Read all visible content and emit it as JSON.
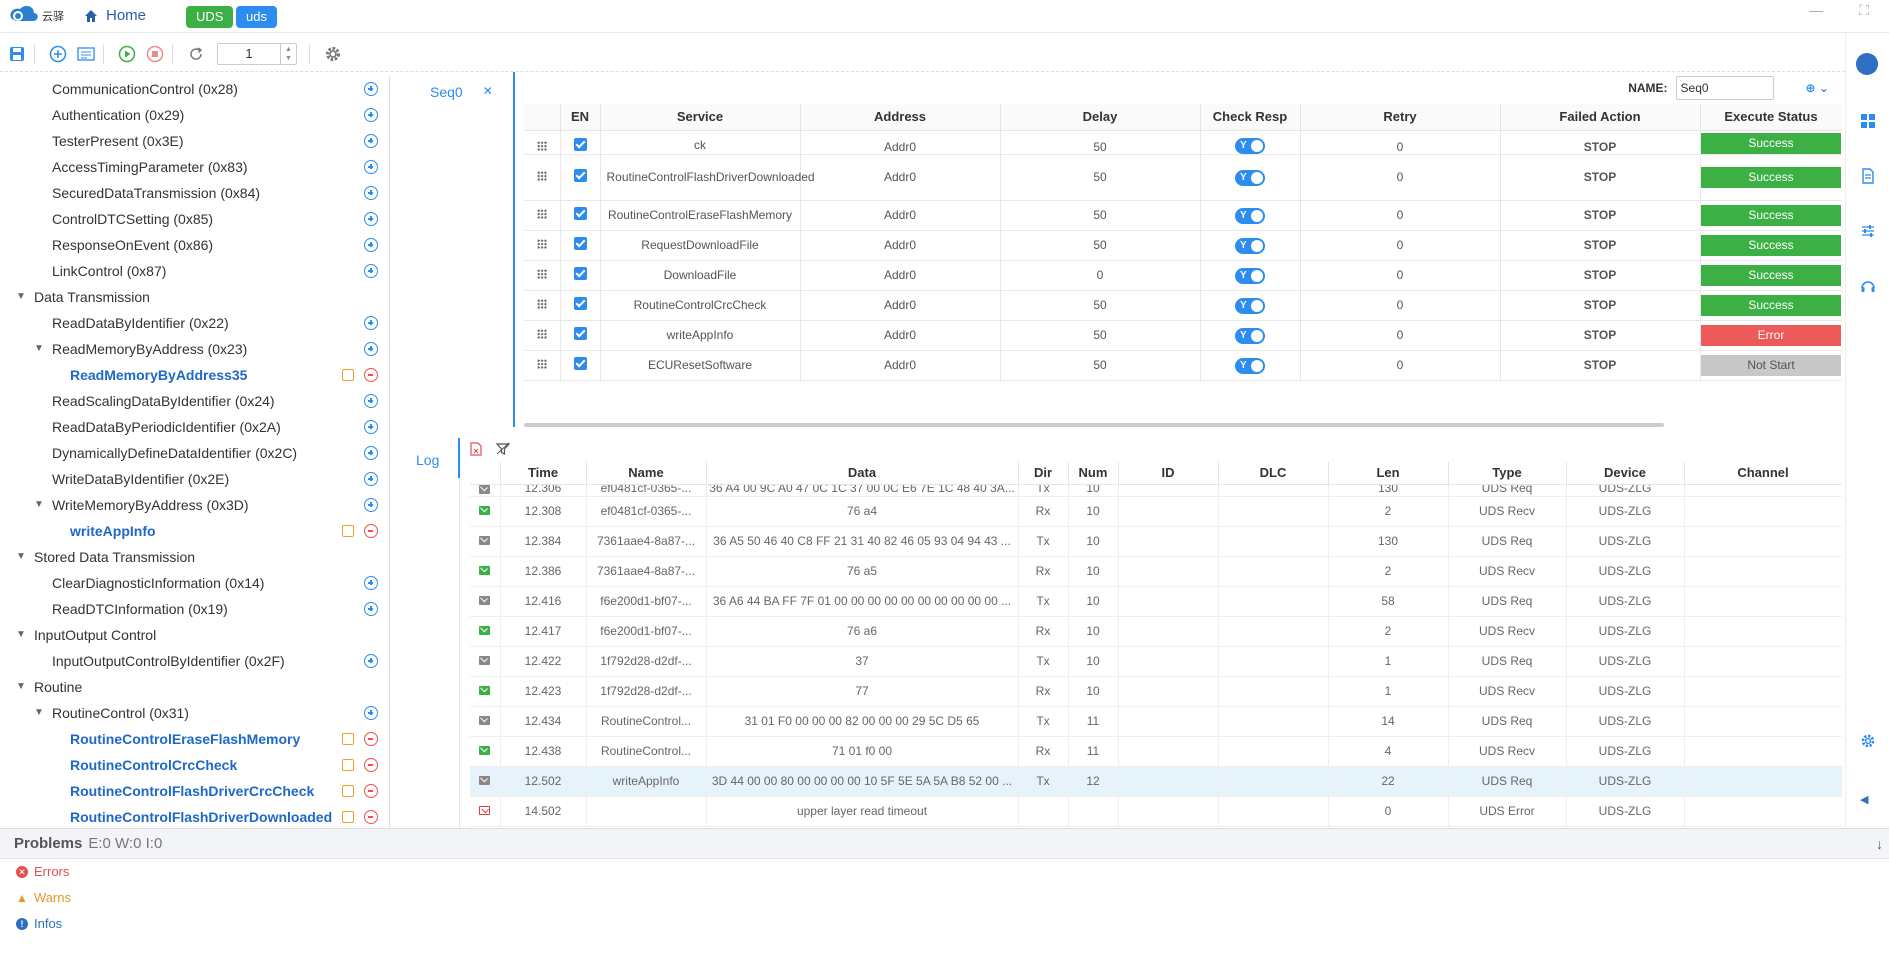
{
  "header": {
    "logo_text": "云驿",
    "home_label": "Home",
    "tabs": [
      "UDS",
      "uds"
    ],
    "colors": {
      "accent": "#2d8cf0",
      "success": "#3cb045",
      "error": "#ed5a5a"
    }
  },
  "toolbar": {
    "step_value": "1"
  },
  "tree": [
    {
      "label": "CommunicationControl (0x28)",
      "level": 1,
      "type": "service"
    },
    {
      "label": "Authentication (0x29)",
      "level": 1,
      "type": "service"
    },
    {
      "label": "TesterPresent (0x3E)",
      "level": 1,
      "type": "service"
    },
    {
      "label": "AccessTimingParameter (0x83)",
      "level": 1,
      "type": "service"
    },
    {
      "label": "SecuredDataTransmission (0x84)",
      "level": 1,
      "type": "service"
    },
    {
      "label": "ControlDTCSetting (0x85)",
      "level": 1,
      "type": "service"
    },
    {
      "label": "ResponseOnEvent (0x86)",
      "level": 1,
      "type": "service"
    },
    {
      "label": "LinkControl (0x87)",
      "level": 1,
      "type": "service"
    },
    {
      "label": "Data Transmission",
      "level": 0,
      "type": "group"
    },
    {
      "label": "ReadDataByIdentifier (0x22)",
      "level": 1,
      "type": "service"
    },
    {
      "label": "ReadMemoryByAddress (0x23)",
      "level": 1,
      "type": "service",
      "expanded": true
    },
    {
      "label": "ReadMemoryByAddress35",
      "level": 2,
      "type": "leaf"
    },
    {
      "label": "ReadScalingDataByIdentifier (0x24)",
      "level": 1,
      "type": "service"
    },
    {
      "label": "ReadDataByPeriodicIdentifier (0x2A)",
      "level": 1,
      "type": "service"
    },
    {
      "label": "DynamicallyDefineDataIdentifier (0x2C)",
      "level": 1,
      "type": "service"
    },
    {
      "label": "WriteDataByIdentifier (0x2E)",
      "level": 1,
      "type": "service"
    },
    {
      "label": "WriteMemoryByAddress (0x3D)",
      "level": 1,
      "type": "service",
      "expanded": true
    },
    {
      "label": "writeAppInfo",
      "level": 2,
      "type": "leaf"
    },
    {
      "label": "Stored Data Transmission",
      "level": 0,
      "type": "group"
    },
    {
      "label": "ClearDiagnosticInformation (0x14)",
      "level": 1,
      "type": "service"
    },
    {
      "label": "ReadDTCInformation (0x19)",
      "level": 1,
      "type": "service"
    },
    {
      "label": "InputOutput Control",
      "level": 0,
      "type": "group"
    },
    {
      "label": "InputOutputControlByIdentifier (0x2F)",
      "level": 1,
      "type": "service"
    },
    {
      "label": "Routine",
      "level": 0,
      "type": "group"
    },
    {
      "label": "RoutineControl (0x31)",
      "level": 1,
      "type": "service",
      "expanded": true
    },
    {
      "label": "RoutineControlEraseFlashMemory",
      "level": 2,
      "type": "leaf"
    },
    {
      "label": "RoutineControlCrcCheck",
      "level": 2,
      "type": "leaf"
    },
    {
      "label": "RoutineControlFlashDriverCrcCheck",
      "level": 2,
      "type": "leaf"
    },
    {
      "label": "RoutineControlFlashDriverDownloaded",
      "level": 2,
      "type": "leaf"
    }
  ],
  "seq": {
    "tab_label": "Seq0",
    "name_label": "NAME:",
    "name_value": "Seq0",
    "columns": [
      "EN",
      "Service",
      "Address",
      "Delay",
      "Check Resp",
      "Retry",
      "Failed Action",
      "Execute Status"
    ],
    "rows": [
      {
        "service": "ck",
        "address": "Addr0",
        "delay": "50",
        "check": "Y",
        "retry": "0",
        "failed": "STOP",
        "status": "Success",
        "kind": "success",
        "partial": true
      },
      {
        "service": "RoutineControlFlashDriverDownloaded",
        "address": "Addr0",
        "delay": "50",
        "check": "Y",
        "retry": "0",
        "failed": "STOP",
        "status": "Success",
        "kind": "success",
        "tall": true
      },
      {
        "service": "RoutineControlEraseFlashMemory",
        "address": "Addr0",
        "delay": "50",
        "check": "Y",
        "retry": "0",
        "failed": "STOP",
        "status": "Success",
        "kind": "success"
      },
      {
        "service": "RequestDownloadFile",
        "address": "Addr0",
        "delay": "50",
        "check": "Y",
        "retry": "0",
        "failed": "STOP",
        "status": "Success",
        "kind": "success"
      },
      {
        "service": "DownloadFile",
        "address": "Addr0",
        "delay": "0",
        "check": "Y",
        "retry": "0",
        "failed": "STOP",
        "status": "Success",
        "kind": "success"
      },
      {
        "service": "RoutineControlCrcCheck",
        "address": "Addr0",
        "delay": "50",
        "check": "Y",
        "retry": "0",
        "failed": "STOP",
        "status": "Success",
        "kind": "success"
      },
      {
        "service": "writeAppInfo",
        "address": "Addr0",
        "delay": "50",
        "check": "Y",
        "retry": "0",
        "failed": "STOP",
        "status": "Error",
        "kind": "error"
      },
      {
        "service": "ECUResetSoftware",
        "address": "Addr0",
        "delay": "50",
        "check": "Y",
        "retry": "0",
        "failed": "STOP",
        "status": "Not Start",
        "kind": "not"
      }
    ]
  },
  "log": {
    "tab_label": "Log",
    "columns": [
      "Time",
      "Name",
      "Data",
      "Dir",
      "Num",
      "ID",
      "DLC",
      "Len",
      "Type",
      "Device",
      "Channel"
    ],
    "rows": [
      {
        "kind": "tx",
        "time": "12.306",
        "name": "ef0481cf-0365-...",
        "data": "36 A4 00 9C A0 47 0C 1C 37 00 0C E6 7E 1C 48 40 3A...",
        "dir": "Tx",
        "num": "10",
        "id": "",
        "dlc": "",
        "len": "130",
        "type": "UDS Req",
        "device": "UDS-ZLG",
        "channel": "",
        "partial": true
      },
      {
        "kind": "rx",
        "time": "12.308",
        "name": "ef0481cf-0365-...",
        "data": "76 a4",
        "dir": "Rx",
        "num": "10",
        "id": "",
        "dlc": "",
        "len": "2",
        "type": "UDS Recv",
        "device": "UDS-ZLG",
        "channel": ""
      },
      {
        "kind": "tx",
        "time": "12.384",
        "name": "7361aae4-8a87-...",
        "data": "36 A5 50 46 40 C8 FF 21 31 40 82 46 05 93 04 94 43 ...",
        "dir": "Tx",
        "num": "10",
        "id": "",
        "dlc": "",
        "len": "130",
        "type": "UDS Req",
        "device": "UDS-ZLG",
        "channel": ""
      },
      {
        "kind": "rx",
        "time": "12.386",
        "name": "7361aae4-8a87-...",
        "data": "76 a5",
        "dir": "Rx",
        "num": "10",
        "id": "",
        "dlc": "",
        "len": "2",
        "type": "UDS Recv",
        "device": "UDS-ZLG",
        "channel": ""
      },
      {
        "kind": "tx",
        "time": "12.416",
        "name": "f6e200d1-bf07-...",
        "data": "36 A6 44 BA FF 7F 01 00 00 00 00 00 00 00 00 00 00 ...",
        "dir": "Tx",
        "num": "10",
        "id": "",
        "dlc": "",
        "len": "58",
        "type": "UDS Req",
        "device": "UDS-ZLG",
        "channel": ""
      },
      {
        "kind": "rx",
        "time": "12.417",
        "name": "f6e200d1-bf07-...",
        "data": "76 a6",
        "dir": "Rx",
        "num": "10",
        "id": "",
        "dlc": "",
        "len": "2",
        "type": "UDS Recv",
        "device": "UDS-ZLG",
        "channel": ""
      },
      {
        "kind": "tx",
        "time": "12.422",
        "name": "1f792d28-d2df-...",
        "data": "37",
        "dir": "Tx",
        "num": "10",
        "id": "",
        "dlc": "",
        "len": "1",
        "type": "UDS Req",
        "device": "UDS-ZLG",
        "channel": ""
      },
      {
        "kind": "rx",
        "time": "12.423",
        "name": "1f792d28-d2df-...",
        "data": "77",
        "dir": "Rx",
        "num": "10",
        "id": "",
        "dlc": "",
        "len": "1",
        "type": "UDS Recv",
        "device": "UDS-ZLG",
        "channel": ""
      },
      {
        "kind": "tx",
        "time": "12.434",
        "name": "RoutineControl...",
        "data": "31 01 F0 00 00 00 82 00 00 00 29 5C D5 65",
        "dir": "Tx",
        "num": "11",
        "id": "",
        "dlc": "",
        "len": "14",
        "type": "UDS Req",
        "device": "UDS-ZLG",
        "channel": ""
      },
      {
        "kind": "rx",
        "time": "12.438",
        "name": "RoutineControl...",
        "data": "71 01 f0 00",
        "dir": "Rx",
        "num": "11",
        "id": "",
        "dlc": "",
        "len": "4",
        "type": "UDS Recv",
        "device": "UDS-ZLG",
        "channel": ""
      },
      {
        "kind": "tx",
        "time": "12.502",
        "name": "writeAppInfo",
        "data": "3D 44 00 00 80 00 00 00 00 10 5F 5E 5A 5A B8 52 00 ...",
        "dir": "Tx",
        "num": "12",
        "id": "",
        "dlc": "",
        "len": "22",
        "type": "UDS Req",
        "device": "UDS-ZLG",
        "channel": "",
        "selected": true
      },
      {
        "kind": "err",
        "time": "14.502",
        "name": "",
        "data": "upper layer read timeout",
        "dir": "",
        "num": "",
        "id": "",
        "dlc": "",
        "len": "0",
        "type": "UDS Error",
        "device": "UDS-ZLG",
        "channel": ""
      }
    ]
  },
  "problems": {
    "title": "Problems",
    "counts": "E:0 W:0 I:0",
    "errors_label": "Errors",
    "warns_label": "Warns",
    "infos_label": "Infos"
  }
}
